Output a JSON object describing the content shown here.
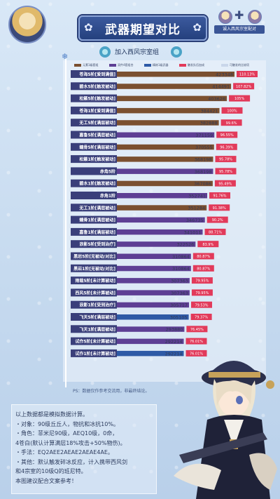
{
  "header": {
    "title": "武器期望对比",
    "team_label": "诚入西风宗室配对",
    "subtitle": "加入西风宗室组"
  },
  "legend": [
    {
      "label": "元素1级套组",
      "color": "#7b5030"
    },
    {
      "label": "双件4套组合",
      "color": "#5e3f94"
    },
    {
      "label": "精炼1级武器",
      "color": "#2e5aa6"
    },
    {
      "label": "触发队伍加成",
      "color": "#e23a5a"
    },
    {
      "label": "可触发的比较项",
      "color": "#c9d6ea"
    }
  ],
  "colors": {
    "brown": "#7b5030",
    "purple": "#5e3f94",
    "blue": "#2e5aa6",
    "pct": "#e23a5a",
    "label_bg": "#3a3f7a"
  },
  "chart_data": {
    "type": "bar",
    "orientation": "horizontal",
    "categories": [
      "苍海5阶[爱到满值]",
      "碧水5阶[触发被动]",
      "松籁5阶[触发被动]",
      "苍海1阶[爱到满值]",
      "无工5阶[满层被动]",
      "嘉鲁5阶[满层被动]",
      "螭骨5阶[满层被动]",
      "松籁1阶[触发被动]",
      "赤角5阶",
      "碧水1阶[触发被动]",
      "赤角1阶",
      "无工1阶[满层被动]",
      "螭骨1阶[满层被动]",
      "嘉鲁1阶[满层被动]",
      "浪影5阶[受到治疗]",
      "黑岩5阶[无被动/对比]",
      "黑岩1阶[无被动/对比]",
      "雨裁5阶[未计算被动]",
      "西风5阶[未计算被动]",
      "浪影1阶[受到治疗]",
      "飞天5阶[满层被动]",
      "飞天1阶[满层被动]",
      "试作5阶[未计算被动]",
      "试作1阶[未计算被动]"
    ],
    "values": [
      423348,
      414491,
      403626,
      384421,
      382888,
      371159,
      370555,
      368198,
      368198,
      367086,
      352741,
      351284,
      346735,
      341011,
      322526,
      310864,
      310864,
      307363,
      307363,
      305717,
      305105,
      293880,
      292214,
      292214
    ],
    "percent_labels": [
      "110.13%",
      "107.82%",
      "105%",
      "100%",
      "99.6%",
      "96.55%",
      "96.39%",
      "95.78%",
      "95.78%",
      "95.49%",
      "91.76%",
      "91.38%",
      "90.2%",
      "88.71%",
      "83.9%",
      "80.87%",
      "80.87%",
      "79.95%",
      "79.95%",
      "79.53%",
      "79.37%",
      "76.45%",
      "76.01%",
      "76.01%"
    ],
    "groups": [
      "brown",
      "brown",
      "brown",
      "brown",
      "brown",
      "purple",
      "brown",
      "brown",
      "purple",
      "brown",
      "purple",
      "brown",
      "purple",
      "purple",
      "purple",
      "purple",
      "purple",
      "purple",
      "purple",
      "purple",
      "blue",
      "purple",
      "purple",
      "blue"
    ],
    "xlim": [
      0,
      423348
    ]
  },
  "note": "PS：数据仅作参考交流用，非最终结论。",
  "info_lines": [
    "以上数据都是模拟数据计算。",
    "・对象：90级丘丘人，物抗和冰抗10%。",
    "・角色：菲米尼90级，AEQ10级，0命，",
    "4苍白(默认计算满层18%攻击+50%物伤)。",
    "・手法：EQ2AEE2AEAE2AEAE4AE。",
    "・其他：默认触发碎冰反应，计入携带西风剑",
    "和4宗室的10级Q的班尼特。",
    "本图建议配合文案参考！"
  ]
}
